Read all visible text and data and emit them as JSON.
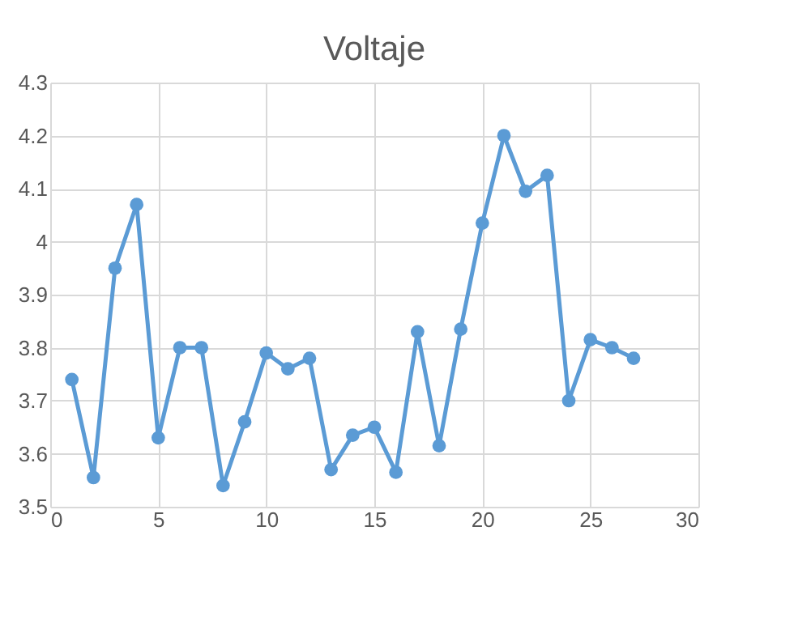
{
  "chart_data": {
    "type": "line",
    "title": "Voltaje",
    "x": [
      1,
      2,
      3,
      4,
      5,
      6,
      7,
      8,
      9,
      10,
      11,
      12,
      13,
      14,
      15,
      16,
      17,
      18,
      19,
      20,
      21,
      22,
      23,
      24,
      25,
      26,
      27
    ],
    "series": [
      {
        "color": "#5b9bd5",
        "values": [
          3.74,
          3.555,
          3.95,
          4.07,
          3.63,
          3.8,
          3.8,
          3.54,
          3.66,
          3.79,
          3.76,
          3.78,
          3.57,
          3.635,
          3.65,
          3.565,
          3.83,
          3.615,
          3.835,
          4.035,
          4.2,
          4.095,
          4.125,
          3.7,
          3.815,
          3.8,
          3.78
        ]
      }
    ],
    "xlim": [
      0,
      30
    ],
    "xticks": [
      0,
      5,
      10,
      15,
      20,
      25,
      30
    ],
    "ylim": [
      3.5,
      4.3
    ],
    "yticks": [
      3.5,
      3.6,
      3.7,
      3.8,
      3.9,
      4,
      4.1,
      4.2,
      4.3
    ],
    "grid": true,
    "marker": "circle",
    "line_style": "solid"
  }
}
